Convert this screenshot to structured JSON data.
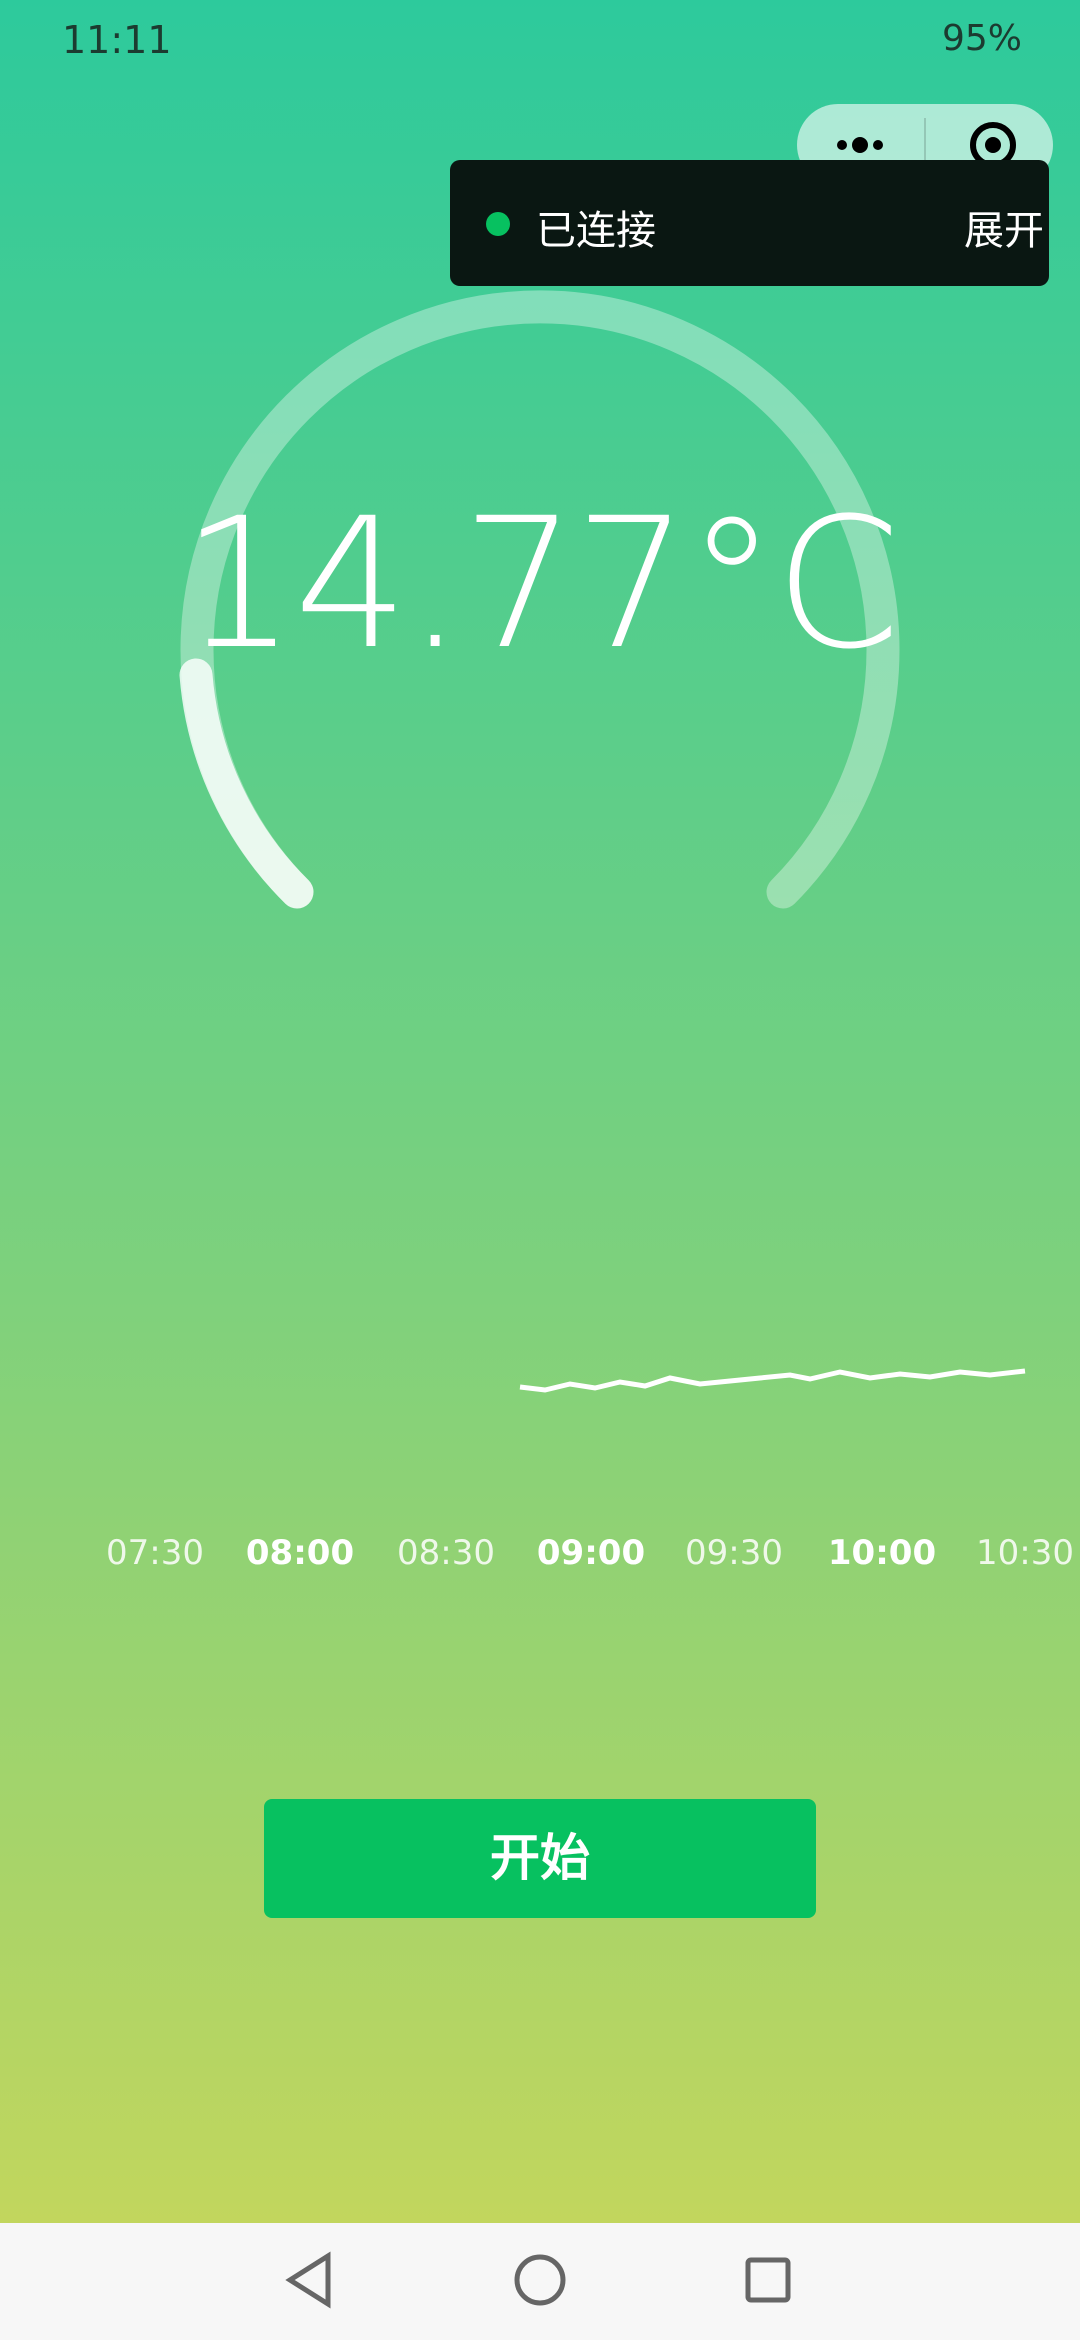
{
  "status_bar": {
    "time": "11:11",
    "battery": "95%"
  },
  "toast": {
    "status": "已连接",
    "action": "展开"
  },
  "gauge": {
    "temperature": "14.77°C"
  },
  "timeline": {
    "labels": [
      "07:30",
      "08:00",
      "08:30",
      "09:00",
      "09:30",
      "10:00",
      "10:30"
    ]
  },
  "button": {
    "label": "开始"
  }
}
